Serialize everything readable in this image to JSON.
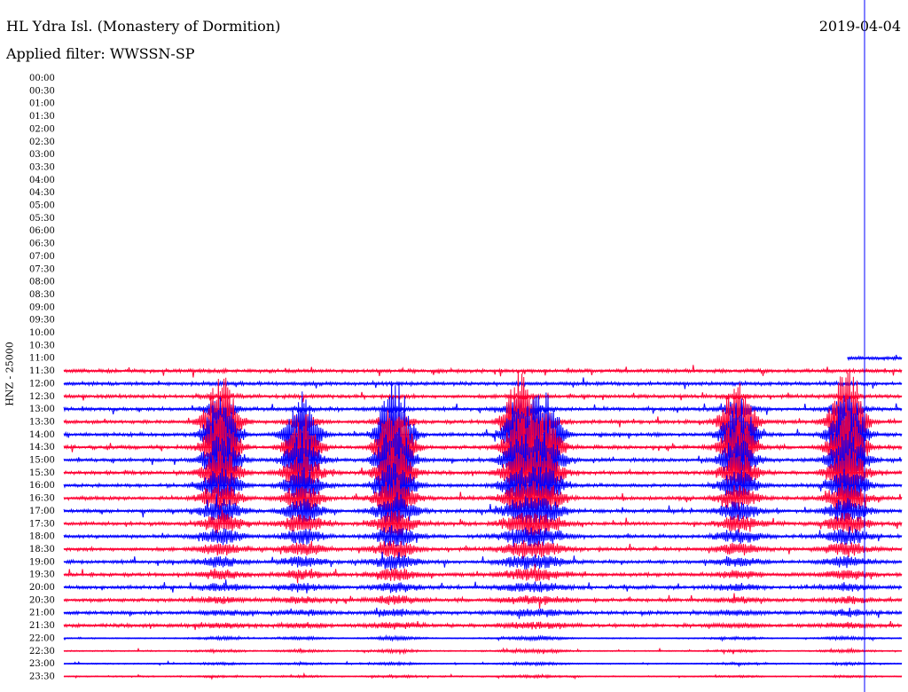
{
  "header": {
    "station": "HL Ydra Isl. (Monastery of Dormition)",
    "filter": "Applied filter: WWSSN-SP",
    "date": "2019-04-04"
  },
  "chart_data": {
    "type": "line",
    "title": "HL Ydra Isl. (Monastery of Dormition)",
    "subtitle": "Applied filter: WWSSN-SP",
    "ylabel": "HNZ - 25000",
    "xlabel": "",
    "tick_labels": [
      "00:00",
      "00:30",
      "01:00",
      "01:30",
      "02:00",
      "02:30",
      "03:00",
      "03:30",
      "04:00",
      "04:30",
      "05:00",
      "05:30",
      "06:00",
      "06:30",
      "07:00",
      "07:30",
      "08:00",
      "08:30",
      "09:00",
      "09:30",
      "10:00",
      "10:30",
      "11:00",
      "11:30",
      "12:00",
      "12:30",
      "13:00",
      "13:30",
      "14:00",
      "14:30",
      "15:00",
      "15:30",
      "16:00",
      "16:30",
      "17:00",
      "17:30",
      "18:00",
      "18:30",
      "19:00",
      "19:30",
      "20:00",
      "20:30",
      "21:00",
      "21:30",
      "22:00",
      "22:30",
      "23:00",
      "23:30"
    ],
    "first_trace_row": 22,
    "first_trace_start_fraction": 0.935,
    "colors": {
      "even": "#0000ff",
      "odd": "#ff0033"
    },
    "events": [
      {
        "name": "event-1",
        "x_fraction": 0.188,
        "peak_row": 27,
        "strength": 1.0
      },
      {
        "name": "event-2",
        "x_fraction": 0.285,
        "peak_row": 28,
        "strength": 0.8
      },
      {
        "name": "event-3",
        "x_fraction": 0.395,
        "peak_row": 28,
        "strength": 1.15
      },
      {
        "name": "event-4",
        "x_fraction": 0.545,
        "peak_row": 27,
        "strength": 0.95
      },
      {
        "name": "event-5",
        "x_fraction": 0.575,
        "peak_row": 28,
        "strength": 0.75
      },
      {
        "name": "event-6",
        "x_fraction": 0.805,
        "peak_row": 27,
        "strength": 0.85
      },
      {
        "name": "event-7",
        "x_fraction": 0.935,
        "peak_row": 27,
        "strength": 1.1
      }
    ],
    "grid": false
  }
}
